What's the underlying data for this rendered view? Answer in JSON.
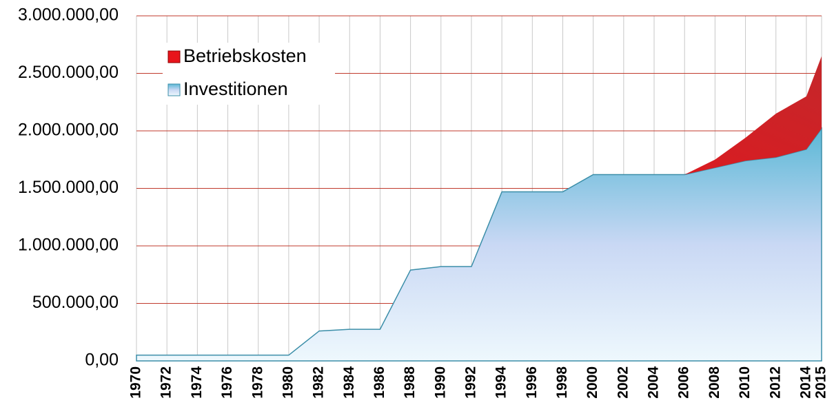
{
  "chart_data": {
    "type": "area",
    "stacked": true,
    "x": [
      1970,
      1972,
      1974,
      1976,
      1978,
      1980,
      1982,
      1984,
      1986,
      1988,
      1990,
      1992,
      1994,
      1996,
      1998,
      2000,
      2002,
      2004,
      2006,
      2008,
      2010,
      2012,
      2014,
      2015
    ],
    "series": [
      {
        "name": "Investitionen",
        "color": "#5bb8d6",
        "values": [
          50000,
          50000,
          50000,
          50000,
          50000,
          50000,
          260000,
          275000,
          275000,
          790000,
          820000,
          820000,
          1470000,
          1470000,
          1470000,
          1620000,
          1620000,
          1620000,
          1620000,
          1680000,
          1740000,
          1770000,
          1840000,
          2020000
        ]
      },
      {
        "name": "Betriebskosten",
        "color": "#e8141b",
        "values": [
          0,
          0,
          0,
          0,
          0,
          0,
          0,
          0,
          0,
          0,
          0,
          0,
          0,
          0,
          0,
          0,
          0,
          0,
          0,
          70000,
          200000,
          380000,
          460000,
          630000
        ]
      }
    ],
    "xlim": [
      1970,
      2015
    ],
    "xticks": [
      1970,
      1972,
      1974,
      1976,
      1978,
      1980,
      1982,
      1984,
      1986,
      1988,
      1990,
      1992,
      1994,
      1996,
      1998,
      2000,
      2002,
      2004,
      2006,
      2008,
      2010,
      2012,
      2014,
      2015
    ],
    "ylim": [
      0,
      3000000
    ],
    "yticks": [
      {
        "value": 0,
        "label": "0,00"
      },
      {
        "value": 500000,
        "label": "500.000,00"
      },
      {
        "value": 1000000,
        "label": "1.000.000,00"
      },
      {
        "value": 1500000,
        "label": "1.500.000,00"
      },
      {
        "value": 2000000,
        "label": "2.000.000,00"
      },
      {
        "value": 2500000,
        "label": "2.500.000,00"
      },
      {
        "value": 3000000,
        "label": "3.000.000,00"
      }
    ],
    "grid": true,
    "legend": "upper left"
  }
}
